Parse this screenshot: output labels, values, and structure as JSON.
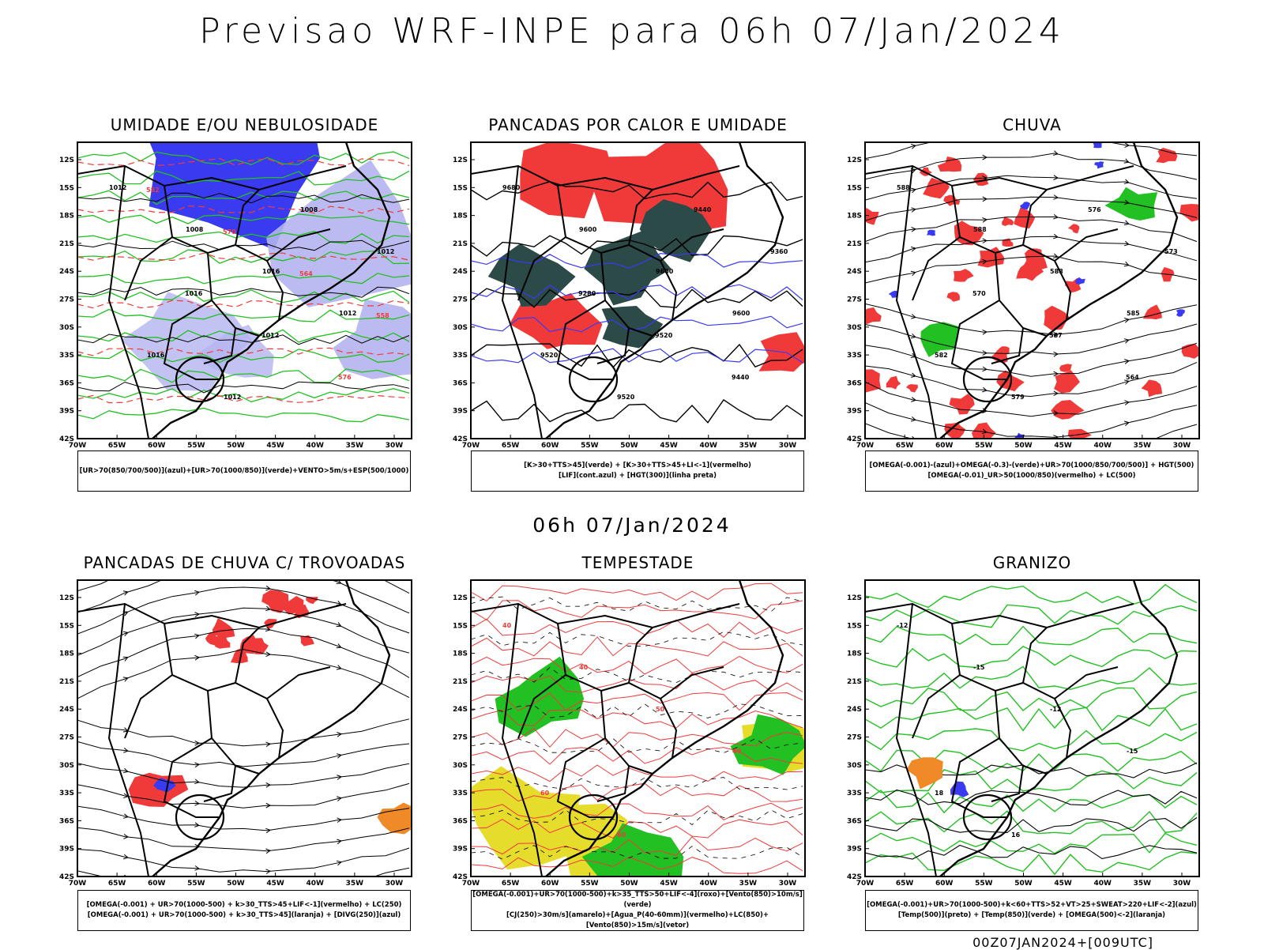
{
  "page": {
    "title": "Previsao WRF-INPE  para 06h 07/Jan/2024",
    "mid_date": "06h 07/Jan/2024",
    "footer": "00Z07JAN2024+[009UTC]"
  },
  "colors": {
    "blue": "#3a3af0",
    "light_blue": "#b4b4f0",
    "green": "#22c022",
    "dark_green": "#2c4a48",
    "red": "#f03a3a",
    "orange": "#f08a28",
    "yellow": "#e6dc2c",
    "black": "#000000"
  },
  "chart_data": [
    {
      "type": "map",
      "title": "UMIDADE E/OU NEBULOSIDADE",
      "legend": [
        "[UR>70(850/700/500)](azul)+[UR>70(1000/850)](verde)+VENTO>5m/s+ESP(500/1000)"
      ],
      "lat_ticks": [
        "12S",
        "15S",
        "18S",
        "21S",
        "24S",
        "27S",
        "30S",
        "33S",
        "36S",
        "39S",
        "42S"
      ],
      "lon_ticks": [
        "70W",
        "65W",
        "60W",
        "55W",
        "50W",
        "45W",
        "40W",
        "35W",
        "30W"
      ],
      "contour_labels": [
        "1012",
        "1008",
        "1016",
        "1012",
        "1016",
        "1012",
        "1008",
        "1012",
        "1016",
        "1012",
        "576",
        "582",
        "570",
        "564",
        "558"
      ]
    },
    {
      "type": "map",
      "title": "PANCADAS POR CALOR E UMIDADE",
      "legend": [
        "[K>30+TTS>45](verde) + [K>30+TTS>45+LI<-1](vermelho)",
        "[LIF](cont.azul) + [HGT(300)](linha preta)"
      ],
      "lat_ticks": [
        "12S",
        "15S",
        "18S",
        "21S",
        "24S",
        "27S",
        "30S",
        "33S",
        "36S",
        "39S",
        "42S"
      ],
      "lon_ticks": [
        "70W",
        "65W",
        "60W",
        "55W",
        "50W",
        "45W",
        "40W",
        "35W",
        "30W"
      ],
      "contour_labels": [
        "9680",
        "9600",
        "9600",
        "9600",
        "9520",
        "9520",
        "9440",
        "9360",
        "9280",
        "9520",
        "9440"
      ]
    },
    {
      "type": "map",
      "title": "CHUVA",
      "legend": [
        "[OMEGA(-0.001)-(azul)+OMEGA(-0.3)-(verde)+UR>70(1000/850/700/500)] + HGT(500)",
        "[OMEGA(-0.01)_UR>50(1000/850)(vermelho) + LC(500)"
      ],
      "lat_ticks": [
        "12S",
        "15S",
        "18S",
        "21S",
        "24S",
        "27S",
        "30S",
        "33S",
        "36S",
        "39S",
        "42S"
      ],
      "lon_ticks": [
        "70W",
        "65W",
        "60W",
        "55W",
        "50W",
        "45W",
        "40W",
        "35W",
        "30W"
      ],
      "contour_labels": [
        "588",
        "588",
        "588",
        "585",
        "582",
        "579",
        "576",
        "573",
        "570",
        "567",
        "564"
      ]
    },
    {
      "type": "map",
      "title": "PANCADAS DE CHUVA C/ TROVOADAS",
      "legend": [
        "[OMEGA(-0.001) + UR>70(1000-500) + k>30_TTS>45+LIF<-1](vermelho) + LC(250)",
        "[OMEGA(-0.001) + UR>70(1000-500) + k>30_TTS>45](laranja) + [DIVG(250)](azul)"
      ],
      "lat_ticks": [
        "12S",
        "15S",
        "18S",
        "21S",
        "24S",
        "27S",
        "30S",
        "33S",
        "36S",
        "39S",
        "42S"
      ],
      "lon_ticks": [
        "70W",
        "65W",
        "60W",
        "55W",
        "50W",
        "45W",
        "40W",
        "35W",
        "30W"
      ],
      "contour_labels": []
    },
    {
      "type": "map",
      "title": "TEMPESTADE",
      "legend": [
        "[OMEGA(-0.001)+UR>70(1000-500)+k>35_TTS>50+LIF<-4](roxo)+[Vento(850)>10m/s](verde)",
        "[CJ(250)>30m/s](amarelo)+[Agua_P(40-60mm)](vermelho)+LC(850)+[Vento(850)>15m/s](vetor)"
      ],
      "lat_ticks": [
        "12S",
        "15S",
        "18S",
        "21S",
        "24S",
        "27S",
        "30S",
        "33S",
        "36S",
        "39S",
        "42S"
      ],
      "lon_ticks": [
        "70W",
        "65W",
        "60W",
        "55W",
        "50W",
        "45W",
        "40W",
        "35W",
        "30W"
      ],
      "contour_labels": [
        "40",
        "40",
        "50",
        "40",
        "60",
        "60"
      ]
    },
    {
      "type": "map",
      "title": "GRANIZO",
      "legend": [
        "[OMEGA(-0.001)+UR>70(1000-500)+k<60+TTS>52+VT>25+SWEAT>220+LIF<-2](azul)",
        "[Temp(500)](preto) + [Temp(850)](verde) + [OMEGA(500)<-2](laranja)"
      ],
      "lat_ticks": [
        "12S",
        "15S",
        "18S",
        "21S",
        "24S",
        "27S",
        "30S",
        "33S",
        "36S",
        "39S",
        "42S"
      ],
      "lon_ticks": [
        "70W",
        "65W",
        "60W",
        "55W",
        "50W",
        "45W",
        "40W",
        "35W",
        "30W"
      ],
      "contour_labels": [
        "-12",
        "-15",
        "-12",
        "-15",
        "18",
        "16"
      ]
    }
  ]
}
